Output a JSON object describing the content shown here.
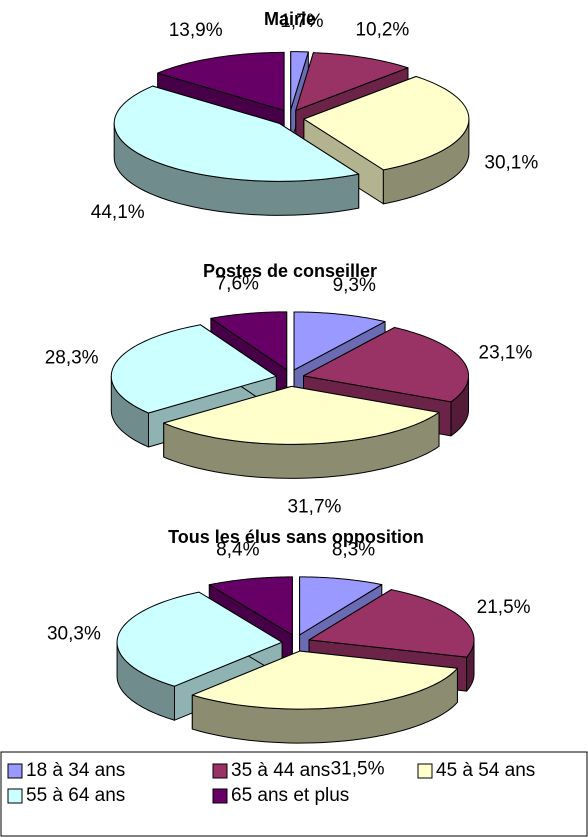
{
  "legend": {
    "categories": [
      "18 à 34 ans",
      "35 à 44 ans",
      "45 à 54 ans",
      "55 à 64 ans",
      "65 ans et plus"
    ],
    "colors": [
      "#9999ff",
      "#993366",
      "#ffffcc",
      "#ccffff",
      "#660066"
    ]
  },
  "chart_data": [
    {
      "type": "pie",
      "title": "Mairie",
      "values": [
        1.7,
        10.2,
        30.1,
        44.1,
        13.9
      ],
      "value_labels": [
        "1,7%",
        "10,2%",
        "30,1%",
        "44,1%",
        "13,9%"
      ]
    },
    {
      "type": "pie",
      "title": "Postes de conseiller",
      "values": [
        9.3,
        23.1,
        31.7,
        28.3,
        7.6
      ],
      "value_labels": [
        "9,3%",
        "23,1%",
        "31,7%",
        "28,3%",
        "7,6%"
      ]
    },
    {
      "type": "pie",
      "title": "Tous les élus sans opposition",
      "values": [
        8.3,
        21.5,
        31.5,
        30.3,
        8.4
      ],
      "value_labels": [
        "8,3%",
        "21,5%",
        "31,5%",
        "30,3%",
        "8,4%"
      ]
    }
  ]
}
